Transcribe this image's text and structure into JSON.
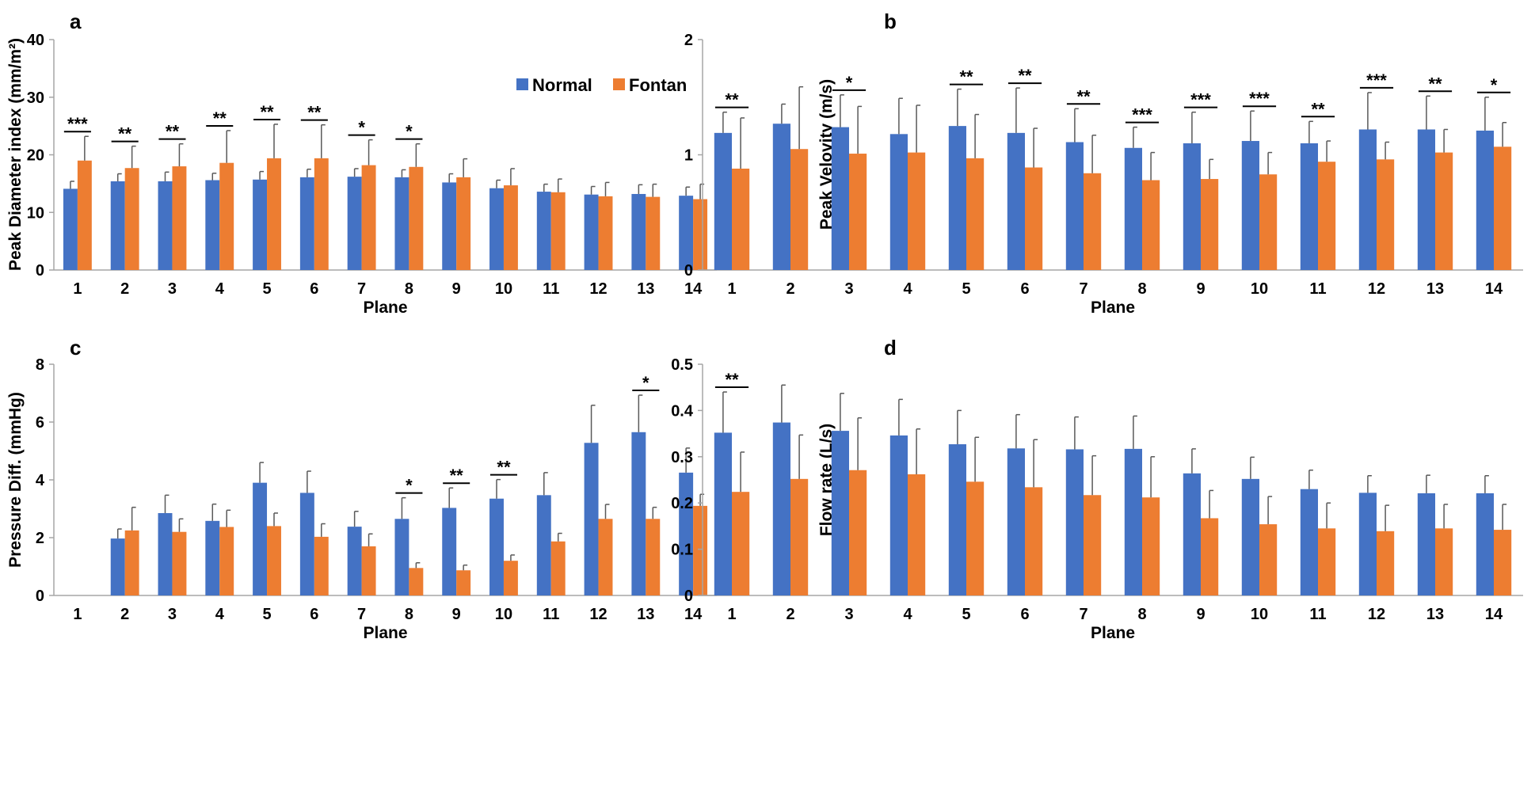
{
  "legend": {
    "normal_label": "Normal",
    "fontan_label": "Fontan"
  },
  "colors": {
    "normal": "#4472C4",
    "fontan": "#ED7D31",
    "axis": "#A6A6A6",
    "error": "#595959",
    "sig": "#000000"
  },
  "chart_data": [
    {
      "id": "a",
      "panel_label": "a",
      "type": "bar",
      "xlabel": "Plane",
      "ylabel": "Peak Diameter index (mm/m²)",
      "ylim": [
        0,
        40
      ],
      "yticks": [
        "0",
        "10",
        "20",
        "30",
        "40"
      ],
      "categories": [
        "1",
        "2",
        "3",
        "4",
        "5",
        "6",
        "7",
        "8",
        "9",
        "10",
        "11",
        "12",
        "13",
        "14"
      ],
      "legend_position": "top-right",
      "series": [
        {
          "name": "Normal",
          "values": [
            14.1,
            15.4,
            15.4,
            15.6,
            15.7,
            16.1,
            16.2,
            16.1,
            15.2,
            14.2,
            13.6,
            13.1,
            13.2,
            12.9
          ],
          "errors": [
            1.3,
            1.3,
            1.6,
            1.2,
            1.4,
            1.4,
            1.4,
            1.3,
            1.5,
            1.4,
            1.3,
            1.4,
            1.6,
            1.5
          ]
        },
        {
          "name": "Fontan",
          "values": [
            19.0,
            17.7,
            18.0,
            18.6,
            19.4,
            19.4,
            18.2,
            17.9,
            16.1,
            14.7,
            13.5,
            12.8,
            12.7,
            12.3
          ],
          "errors": [
            4.2,
            3.8,
            3.9,
            5.6,
            5.9,
            5.8,
            4.4,
            4.0,
            3.2,
            2.9,
            2.3,
            2.4,
            2.2,
            2.6
          ]
        }
      ],
      "significance": [
        "***",
        "**",
        "**",
        "**",
        "**",
        "**",
        "*",
        "*",
        "",
        "",
        "",
        "",
        "",
        ""
      ]
    },
    {
      "id": "b",
      "panel_label": "b",
      "type": "bar",
      "xlabel": "Plane",
      "ylabel": "Peak Velovity (m/s)",
      "ylim": [
        0,
        2
      ],
      "yticks": [
        "0",
        "1",
        "2"
      ],
      "categories": [
        "1",
        "2",
        "3",
        "4",
        "5",
        "6",
        "7",
        "8",
        "9",
        "10",
        "11",
        "12",
        "13",
        "14"
      ],
      "series": [
        {
          "name": "Normal",
          "values": [
            1.19,
            1.27,
            1.24,
            1.18,
            1.25,
            1.19,
            1.11,
            1.06,
            1.1,
            1.12,
            1.1,
            1.22,
            1.22,
            1.21
          ],
          "errors": [
            0.18,
            0.17,
            0.28,
            0.31,
            0.32,
            0.39,
            0.29,
            0.18,
            0.27,
            0.26,
            0.19,
            0.32,
            0.29,
            0.29
          ]
        },
        {
          "name": "Fontan",
          "values": [
            0.88,
            1.05,
            1.01,
            1.02,
            0.97,
            0.89,
            0.84,
            0.78,
            0.79,
            0.83,
            0.94,
            0.96,
            1.02,
            1.07
          ],
          "errors": [
            0.44,
            0.54,
            0.41,
            0.41,
            0.38,
            0.34,
            0.33,
            0.24,
            0.17,
            0.19,
            0.18,
            0.15,
            0.2,
            0.21
          ]
        }
      ],
      "significance": [
        "**",
        "",
        "*",
        "",
        "**",
        "**",
        "**",
        "***",
        "***",
        "***",
        "**",
        "***",
        "**",
        "*"
      ]
    },
    {
      "id": "c",
      "panel_label": "c",
      "type": "bar",
      "xlabel": "Plane",
      "ylabel": "Pressure Diff. (mmHg)",
      "ylim": [
        0,
        8
      ],
      "yticks": [
        "0",
        "2",
        "4",
        "6",
        "8"
      ],
      "categories": [
        "1",
        "2",
        "3",
        "4",
        "5",
        "6",
        "7",
        "8",
        "9",
        "10",
        "11",
        "12",
        "13",
        "14"
      ],
      "series": [
        {
          "name": "Normal",
          "values": [
            0,
            1.97,
            2.85,
            2.58,
            3.9,
            3.55,
            2.38,
            2.65,
            3.03,
            3.35,
            3.47,
            5.28,
            5.65,
            4.25
          ],
          "errors": [
            0,
            0.33,
            0.62,
            0.58,
            0.7,
            0.75,
            0.53,
            0.73,
            0.69,
            0.66,
            0.78,
            1.3,
            1.28,
            0.85
          ]
        },
        {
          "name": "Fontan",
          "values": [
            0,
            2.25,
            2.2,
            2.37,
            2.4,
            2.03,
            1.7,
            0.95,
            0.87,
            1.2,
            1.87,
            2.65,
            2.65,
            3.1
          ],
          "errors": [
            0,
            0.8,
            0.45,
            0.58,
            0.45,
            0.45,
            0.43,
            0.18,
            0.18,
            0.2,
            0.28,
            0.5,
            0.4,
            0.4
          ]
        }
      ],
      "significance": [
        "",
        "",
        "",
        "",
        "",
        "",
        "",
        "*",
        "**",
        "**",
        "",
        "",
        "*",
        ""
      ]
    },
    {
      "id": "d",
      "panel_label": "d",
      "type": "bar",
      "xlabel": "Plane",
      "ylabel": "Flow rate (L/s)",
      "ylim": [
        0,
        0.5
      ],
      "yticks": [
        "0",
        "0.1",
        "0.2",
        "0.3",
        "0.4",
        "0.5"
      ],
      "categories": [
        "1",
        "2",
        "3",
        "4",
        "5",
        "6",
        "7",
        "8",
        "9",
        "10",
        "11",
        "12",
        "13",
        "14"
      ],
      "series": [
        {
          "name": "Normal",
          "values": [
            0.352,
            0.374,
            0.356,
            0.346,
            0.327,
            0.318,
            0.316,
            0.317,
            0.264,
            0.252,
            0.23,
            0.222,
            0.221,
            0.221
          ],
          "errors": [
            0.088,
            0.081,
            0.081,
            0.078,
            0.073,
            0.073,
            0.07,
            0.071,
            0.053,
            0.047,
            0.041,
            0.037,
            0.039,
            0.038
          ]
        },
        {
          "name": "Fontan",
          "values": [
            0.224,
            0.252,
            0.271,
            0.262,
            0.246,
            0.234,
            0.217,
            0.212,
            0.167,
            0.154,
            0.145,
            0.139,
            0.145,
            0.142
          ],
          "errors": [
            0.086,
            0.095,
            0.113,
            0.098,
            0.096,
            0.103,
            0.085,
            0.088,
            0.06,
            0.06,
            0.055,
            0.056,
            0.052,
            0.055
          ]
        }
      ],
      "significance": [
        "**",
        "",
        "",
        "",
        "",
        "",
        "",
        "",
        "",
        "",
        "",
        "",
        "",
        ""
      ]
    }
  ]
}
